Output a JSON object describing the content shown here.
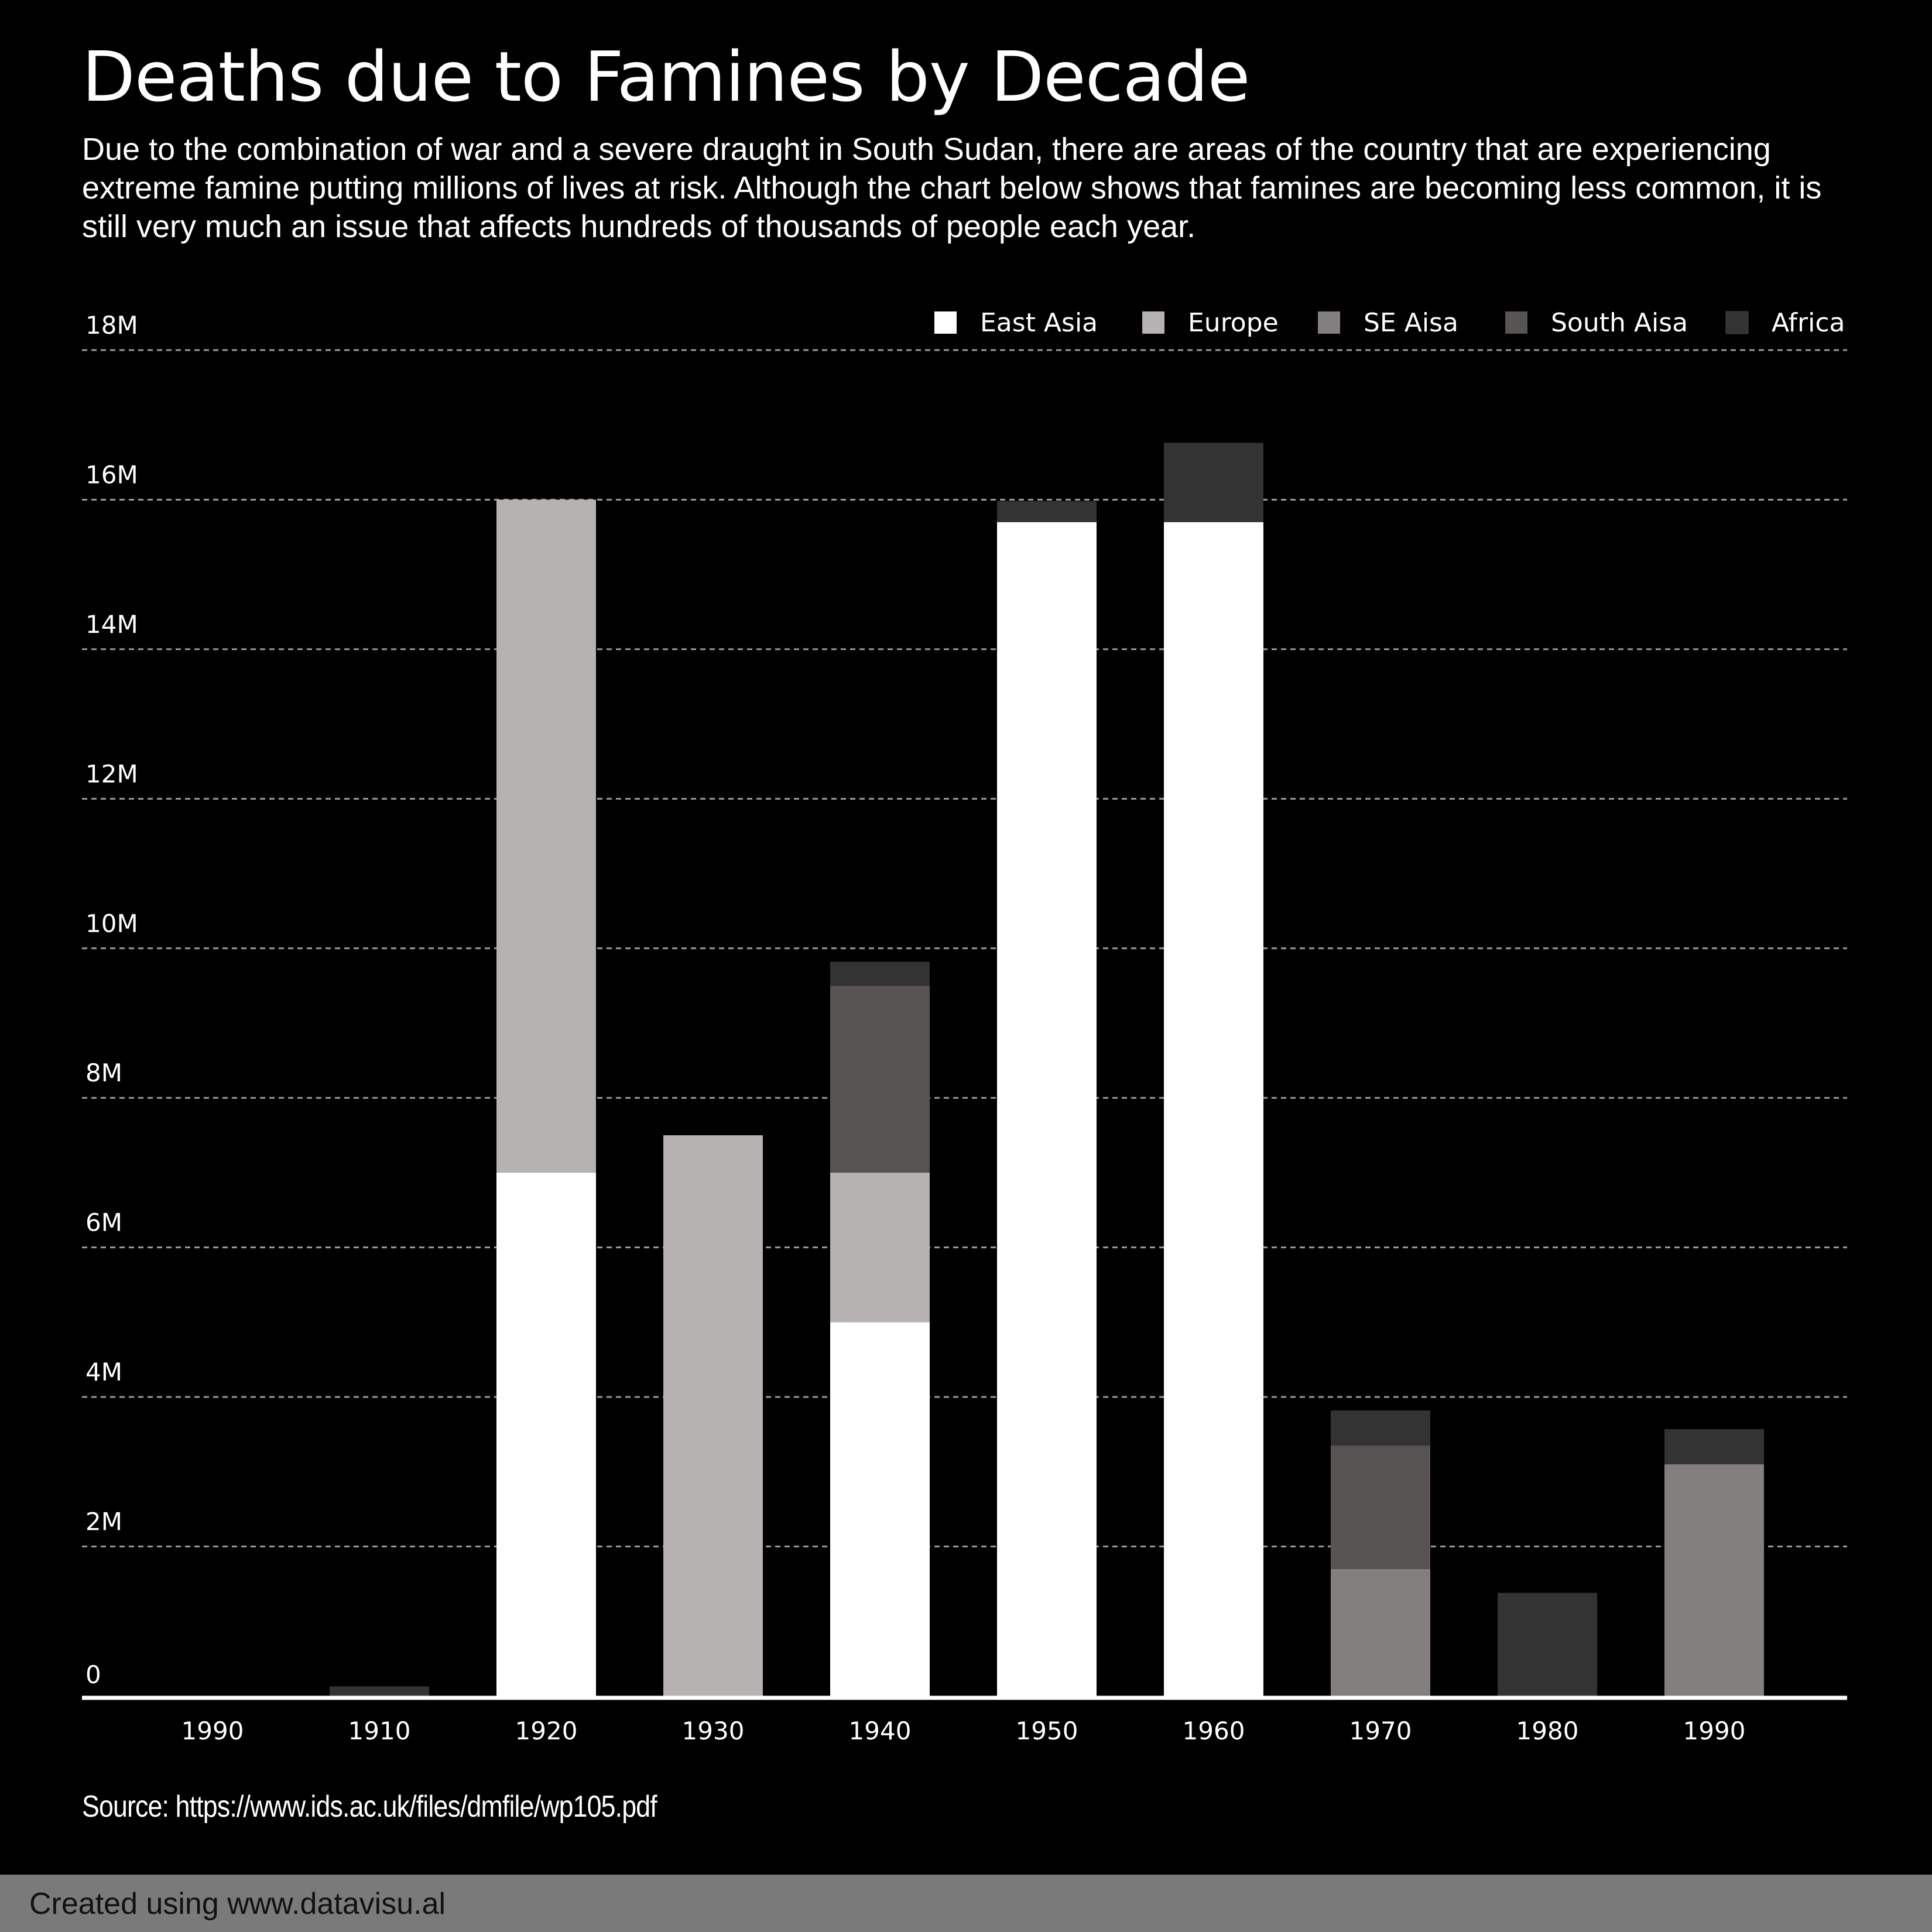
{
  "chart_data": {
    "type": "bar",
    "stacked": true,
    "title": "Deaths due to Famines by Decade",
    "subtitle": "Due to the combination of war and a severe draught in South Sudan, there are areas of the country that are experiencing extreme famine putting millions of lives at risk. Although the chart below shows that famines are becoming less common, it is still very much an issue that affects hundreds of thousands of people each year.",
    "categories": [
      "1990",
      "1910",
      "1920",
      "1930",
      "1940",
      "1950",
      "1960",
      "1970",
      "1980",
      "1990"
    ],
    "series": [
      {
        "name": "East Asia",
        "color": "#ffffff",
        "values": [
          0,
          0,
          7000000,
          0,
          5000000,
          15700000,
          15700000,
          0,
          0,
          0
        ]
      },
      {
        "name": "Europe",
        "color": "#b5b2b1",
        "values": [
          0,
          0,
          9000000,
          7500000,
          2000000,
          0,
          0,
          0,
          0,
          0
        ]
      },
      {
        "name": "SE Aisa",
        "color": "#837f7e",
        "values": [
          0,
          0,
          0,
          0,
          0,
          0,
          0,
          1700000,
          0,
          3100000
        ]
      },
      {
        "name": "South Aisa",
        "color": "#575453",
        "values": [
          0,
          0,
          0,
          0,
          2500000,
          0,
          0,
          1650000,
          0,
          0
        ]
      },
      {
        "name": "Africa",
        "color": "#333333",
        "values": [
          0,
          130000,
          0,
          0,
          320000,
          280000,
          1060000,
          470000,
          1380000,
          470000
        ]
      }
    ],
    "yticks": [
      {
        "value": 0,
        "label": "0"
      },
      {
        "value": 2000000,
        "label": "2M"
      },
      {
        "value": 4000000,
        "label": "4M"
      },
      {
        "value": 6000000,
        "label": "6M"
      },
      {
        "value": 8000000,
        "label": "8M"
      },
      {
        "value": 10000000,
        "label": "10M"
      },
      {
        "value": 12000000,
        "label": "12M"
      },
      {
        "value": 14000000,
        "label": "14M"
      },
      {
        "value": 16000000,
        "label": "16M"
      },
      {
        "value": 18000000,
        "label": "18M"
      }
    ],
    "ylim": [
      0,
      18000000
    ],
    "grid": true,
    "legend_position": "top-right"
  },
  "source": "Source: https://www.ids.ac.uk/files/dmfile/wp105.pdf",
  "footer": "Created using www.datavisu.al"
}
